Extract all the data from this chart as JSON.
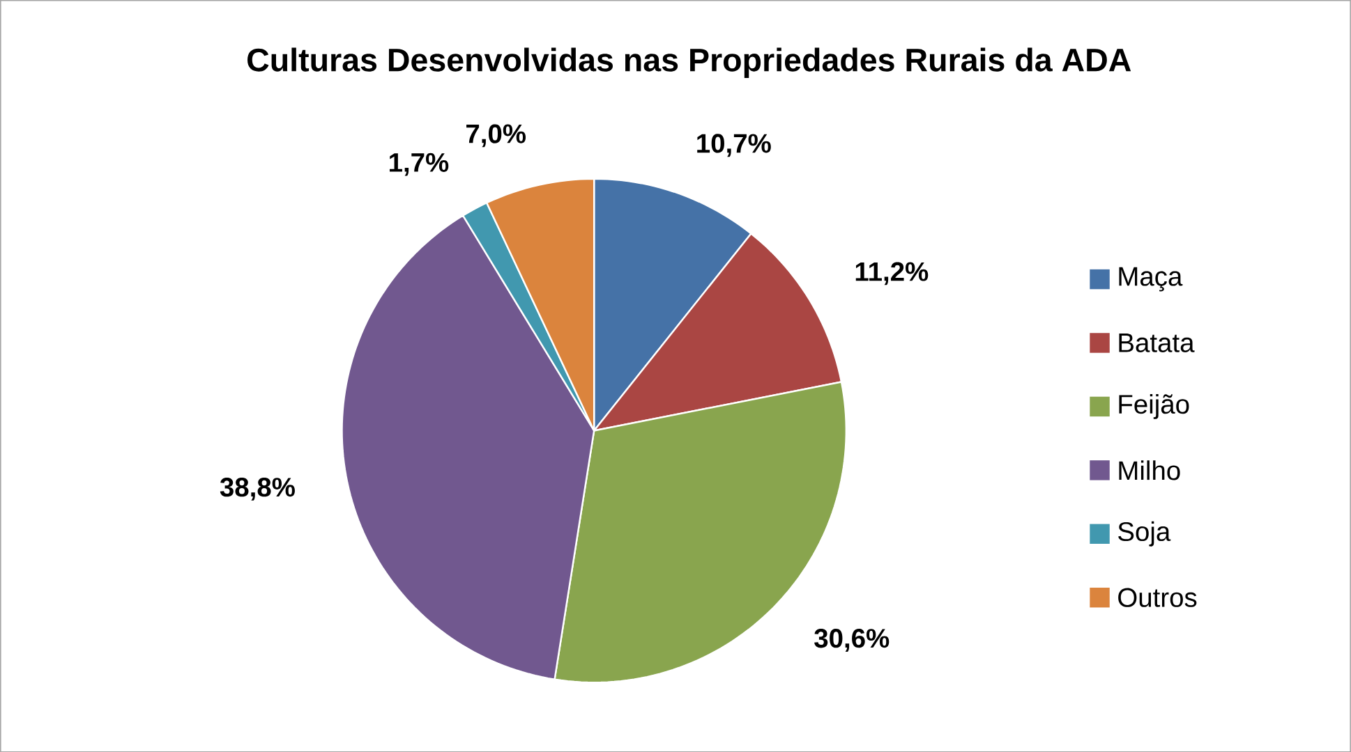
{
  "chart_data": {
    "type": "pie",
    "title": "Culturas Desenvolvidas nas Propriedades Rurais da ADA",
    "categories": [
      "Maça",
      "Batata",
      "Feijão",
      "Milho",
      "Soja",
      "Outros"
    ],
    "values": [
      10.7,
      11.2,
      30.6,
      38.8,
      1.7,
      7.0
    ],
    "value_labels": [
      "10,7%",
      "11,2%",
      "30,6%",
      "38,8%",
      "1,7%",
      "7,0%"
    ],
    "colors": [
      "#4572a7",
      "#aa4643",
      "#89a54e",
      "#71588f",
      "#4198af",
      "#db843d"
    ],
    "legend": "right"
  }
}
